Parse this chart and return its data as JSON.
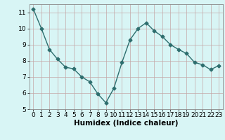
{
  "x": [
    0,
    1,
    2,
    3,
    4,
    5,
    6,
    7,
    8,
    9,
    10,
    11,
    12,
    13,
    14,
    15,
    16,
    17,
    18,
    19,
    20,
    21,
    22,
    23
  ],
  "y": [
    11.2,
    10.0,
    8.7,
    8.1,
    7.6,
    7.5,
    7.0,
    6.7,
    5.95,
    5.4,
    6.3,
    7.9,
    9.3,
    10.0,
    10.35,
    9.85,
    9.5,
    9.0,
    8.7,
    8.45,
    7.9,
    7.75,
    7.45,
    7.7
  ],
  "line_color": "#2d6e6e",
  "marker": "D",
  "markersize": 2.5,
  "linewidth": 1.0,
  "xlabel": "Humidex (Indice chaleur)",
  "bg_color": "#d8f5f5",
  "grid_color": "#c4a8a8",
  "plot_bg": "#d8f5f5",
  "ylim": [
    5,
    11.5
  ],
  "xlim": [
    -0.5,
    23.5
  ],
  "yticks": [
    5,
    6,
    7,
    8,
    9,
    10,
    11
  ],
  "xticks": [
    0,
    1,
    2,
    3,
    4,
    5,
    6,
    7,
    8,
    9,
    10,
    11,
    12,
    13,
    14,
    15,
    16,
    17,
    18,
    19,
    20,
    21,
    22,
    23
  ],
  "xlabel_fontsize": 7.5,
  "tick_fontsize": 6.5
}
